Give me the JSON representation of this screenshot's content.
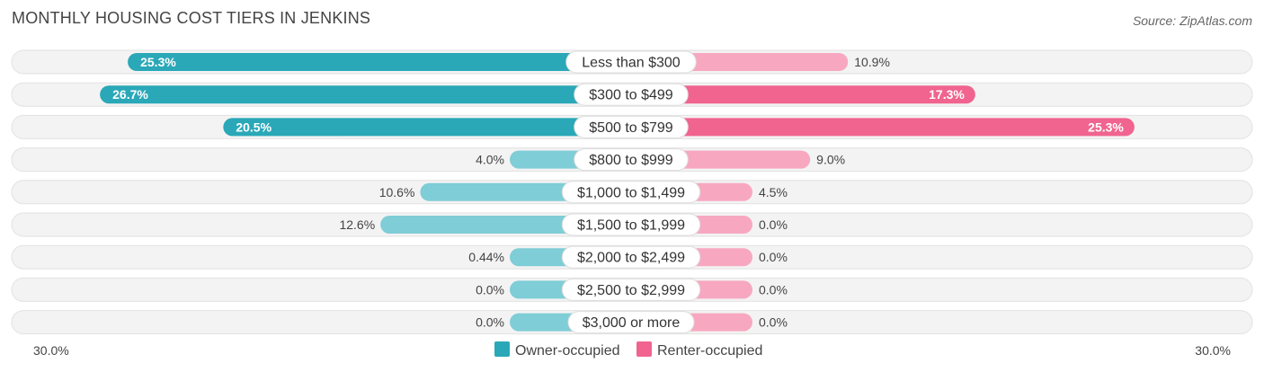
{
  "title": "MONTHLY HOUSING COST TIERS IN JENKINS",
  "source": "Source: ZipAtlas.com",
  "chart_data": {
    "type": "bar",
    "orientation": "horizontal-diverging",
    "title": "MONTHLY HOUSING COST TIERS IN JENKINS",
    "categories": [
      "Less than $300",
      "$300 to $499",
      "$500 to $799",
      "$800 to $999",
      "$1,000 to $1,499",
      "$1,500 to $1,999",
      "$2,000 to $2,499",
      "$2,500 to $2,999",
      "$3,000 or more"
    ],
    "series": [
      {
        "name": "Owner-occupied",
        "values": [
          25.3,
          26.7,
          20.5,
          4.0,
          10.6,
          12.6,
          0.44,
          0.0,
          0.0
        ],
        "labels": [
          "25.3%",
          "26.7%",
          "20.5%",
          "4.0%",
          "10.6%",
          "12.6%",
          "0.44%",
          "0.0%",
          "0.0%"
        ],
        "color": "#2aa8b8",
        "color_light": "#7fcdd6"
      },
      {
        "name": "Renter-occupied",
        "values": [
          10.9,
          17.3,
          25.3,
          9.0,
          4.5,
          0.0,
          0.0,
          0.0,
          0.0
        ],
        "labels": [
          "10.9%",
          "17.3%",
          "25.3%",
          "9.0%",
          "4.5%",
          "0.0%",
          "0.0%",
          "0.0%",
          "0.0%"
        ],
        "color": "#f0648f",
        "color_light": "#f7a8c0"
      }
    ],
    "xlim": [
      -30,
      30
    ],
    "axis_labels": {
      "left": "30.0%",
      "right": "30.0%"
    },
    "legend": {
      "position": "bottom-center"
    },
    "grid": false
  }
}
